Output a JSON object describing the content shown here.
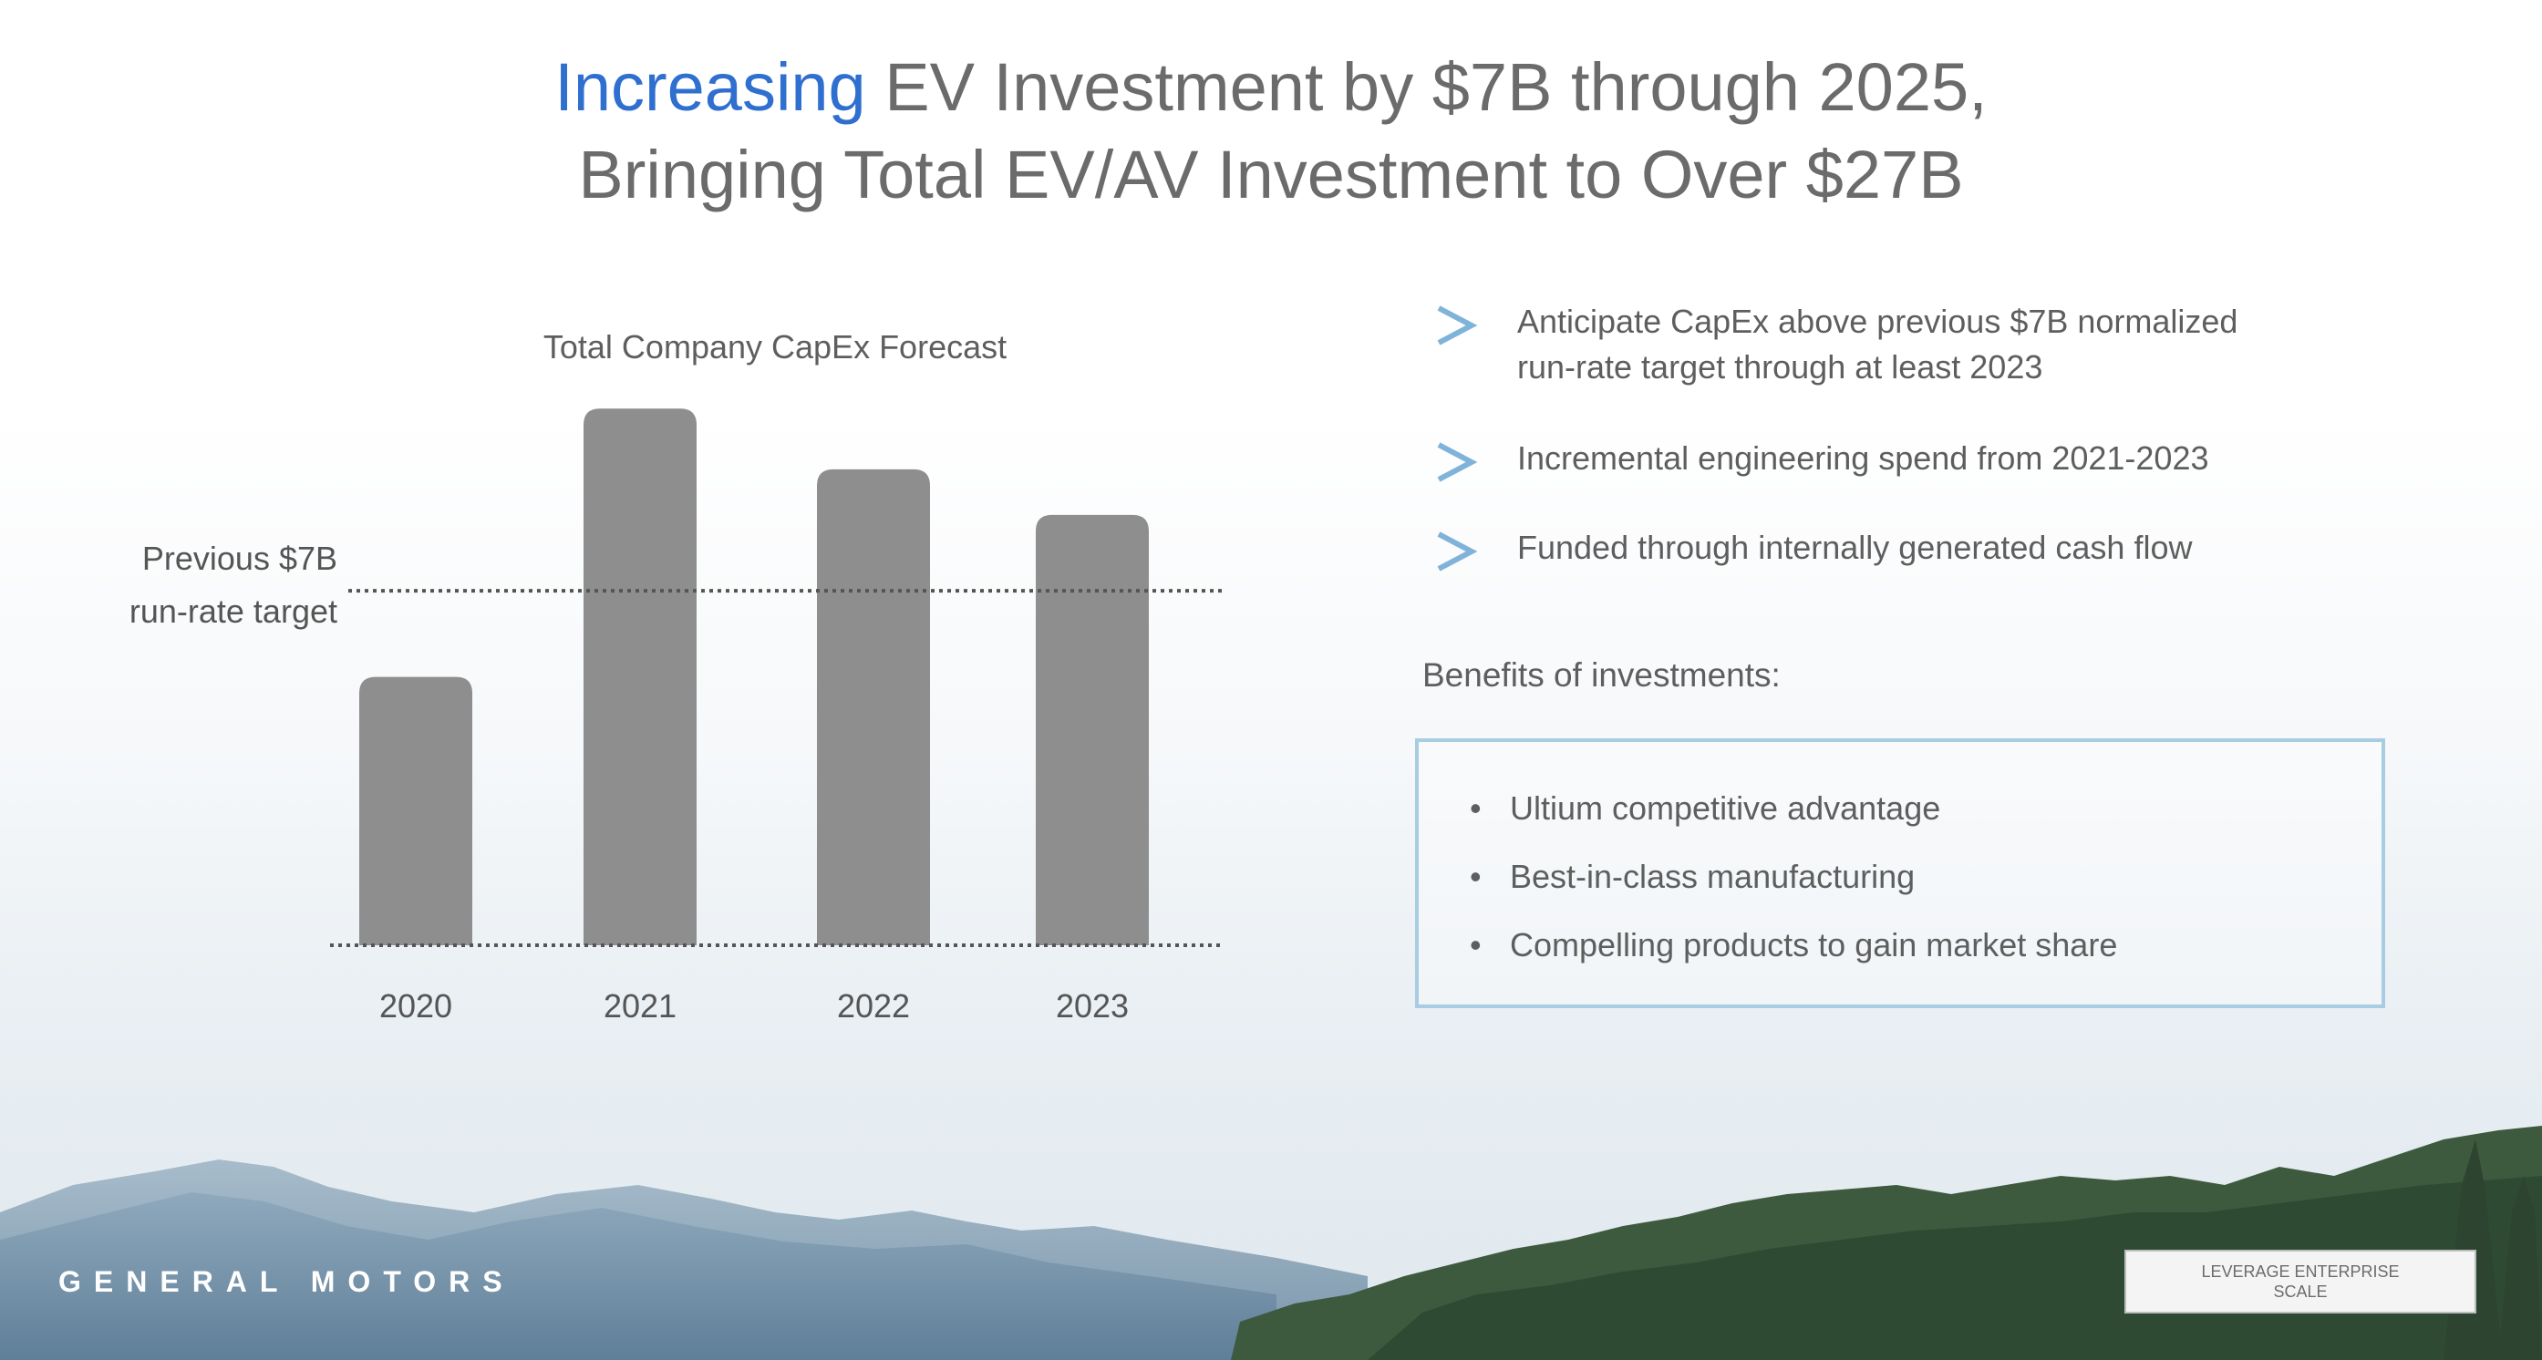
{
  "title": {
    "accent": "Increasing",
    "line1_rest": " EV Investment by $7B through 2025,",
    "line2": "Bringing Total EV/AV Investment to Over $27B"
  },
  "chart_data": {
    "type": "bar",
    "title": "Total Company CapEx Forecast",
    "categories": [
      "2020",
      "2021",
      "2022",
      "2023"
    ],
    "values": [
      5.3,
      10.6,
      9.4,
      8.5
    ],
    "ylim": [
      0,
      11
    ],
    "reference_line": {
      "value": 7,
      "label_line1": "Previous $7B",
      "label_line2": "run-rate target"
    },
    "bar_color": "#8e8e8e"
  },
  "bullets": [
    {
      "icon": "chevron-right-icon",
      "text_line1": "Anticipate CapEx above previous $7B normalized",
      "text_line2": "run-rate target through at least 2023"
    },
    {
      "icon": "chevron-right-icon",
      "text_line1": "Incremental engineering spend from 2021-2023",
      "text_line2": ""
    },
    {
      "icon": "chevron-right-icon",
      "text_line1": "Funded through internally generated cash flow",
      "text_line2": ""
    }
  ],
  "benefits": {
    "heading": "Benefits of investments:",
    "items": [
      "Ultium competitive advantage",
      "Best-in-class manufacturing",
      "Compelling products to gain market share"
    ]
  },
  "brand": "GENERAL MOTORS",
  "badge": "LEVERAGE ENTERPRISE SCALE",
  "colors": {
    "accent": "#2f6fcf",
    "chevron": "#7fb3d9",
    "box_border": "#a8cde2"
  }
}
